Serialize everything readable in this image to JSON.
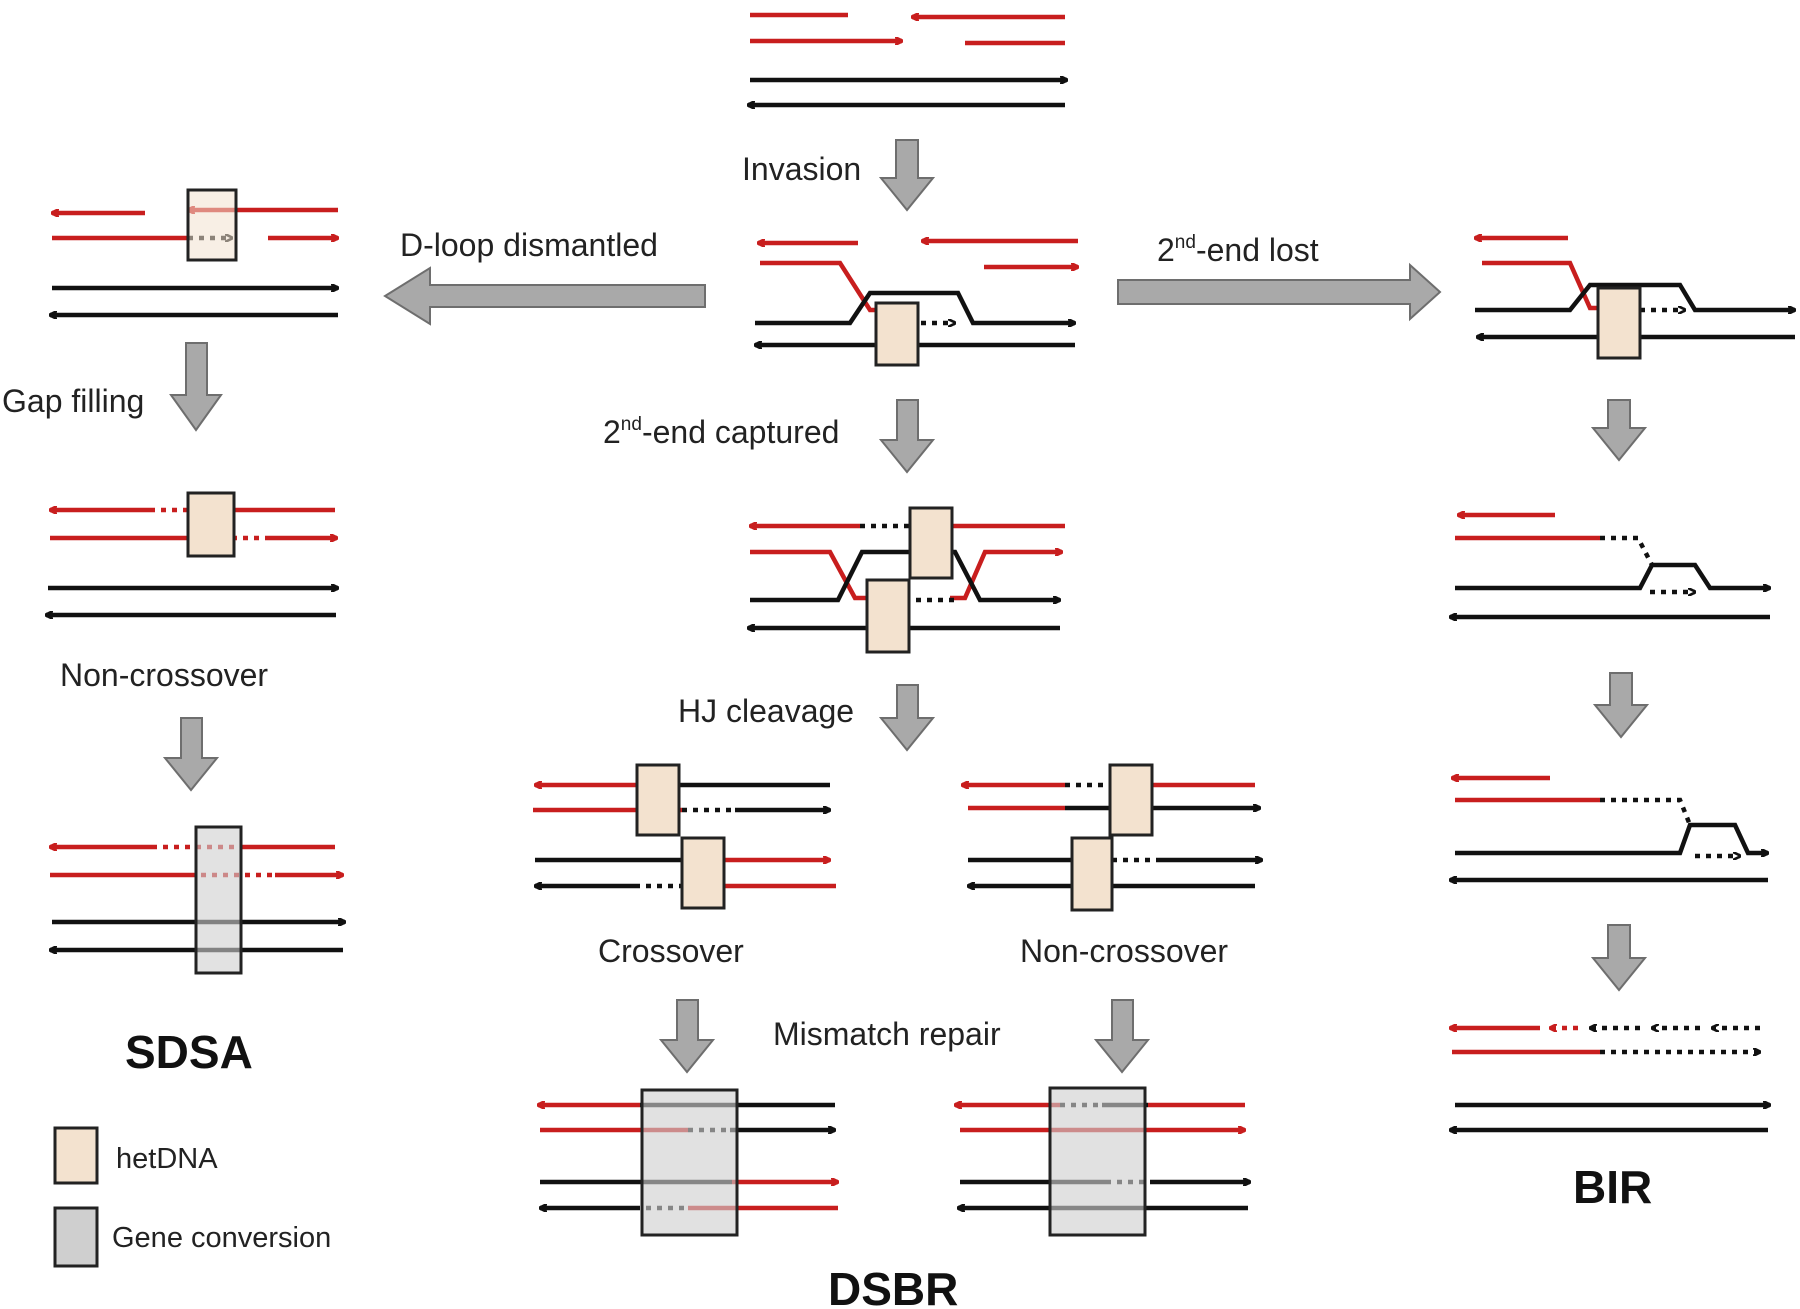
{
  "colors": {
    "invading_strand": "#c81e1e",
    "template_strand": "#111111",
    "hetdna_fill": "#f3e2cf",
    "gene_conversion_fill": "#cfcfcf",
    "step_arrow_fill": "#a9a9a9"
  },
  "steps": {
    "invasion": "Invasion",
    "d_loop_dismantled": "D-loop dismantled",
    "second_end_lost_prefix": "2",
    "second_end_lost_sup": "nd",
    "second_end_lost_suffix": "-end lost",
    "second_end_captured_prefix": "2",
    "second_end_captured_sup": "nd",
    "second_end_captured_suffix": "-end captured",
    "gap_filling": "Gap filling",
    "hj_cleavage": "HJ cleavage",
    "mismatch_repair": "Mismatch repair"
  },
  "outcomes": {
    "sdsa_non_crossover": "Non-crossover",
    "dsbr_crossover": "Crossover",
    "dsbr_non_crossover": "Non-crossover"
  },
  "pathways": {
    "sdsa": "SDSA",
    "dsbr": "DSBR",
    "bir": "BIR"
  },
  "legend": {
    "hetdna": "hetDNA",
    "gene_conversion": "Gene conversion"
  }
}
